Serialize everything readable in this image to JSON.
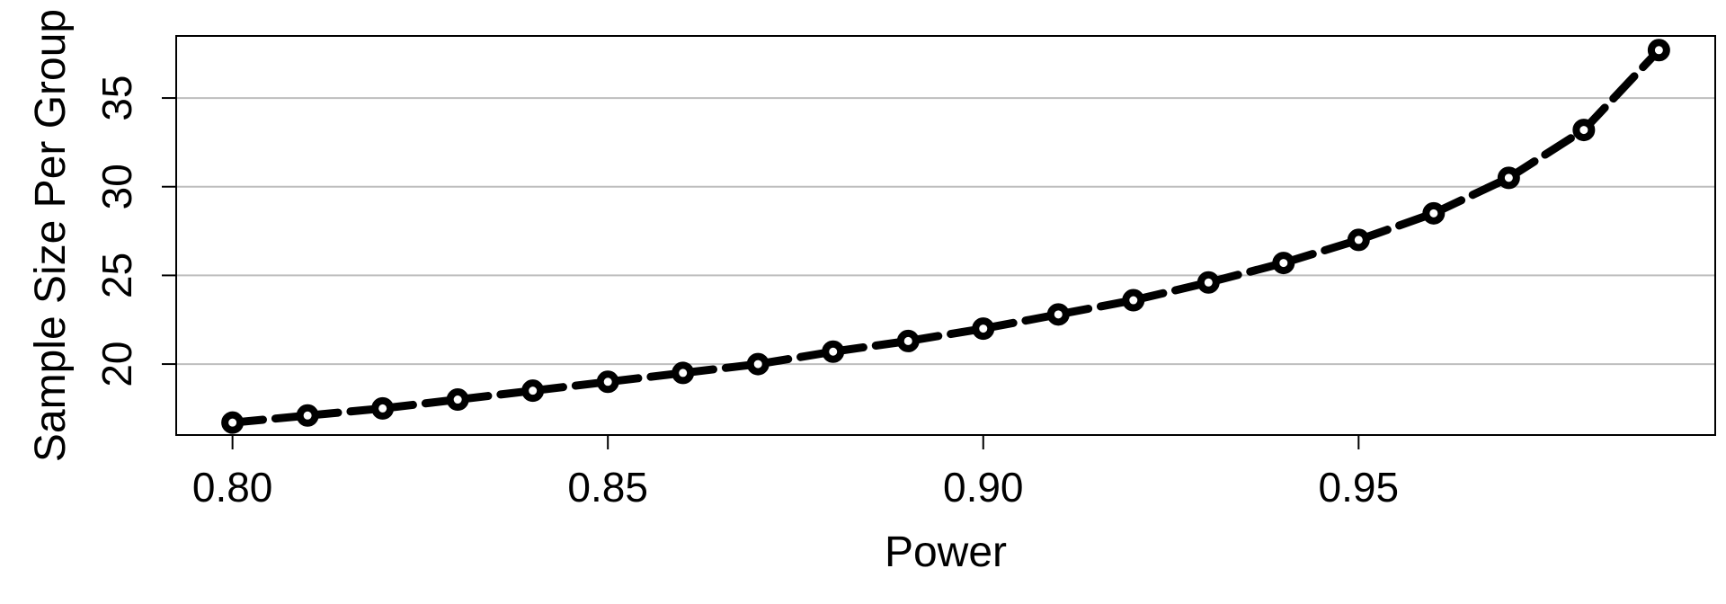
{
  "chart_data": {
    "type": "line",
    "title": "",
    "xlabel": "Power",
    "ylabel": "Sample Size Per Group",
    "xlim": [
      0.7925,
      0.9975
    ],
    "ylim": [
      16.0,
      38.5
    ],
    "x_ticks": [
      0.8,
      0.85,
      0.9,
      0.95
    ],
    "x_tick_labels": [
      "0.80",
      "0.85",
      "0.90",
      "0.95"
    ],
    "y_ticks": [
      20,
      25,
      30,
      35
    ],
    "y_tick_labels": [
      "20",
      "25",
      "30",
      "35"
    ],
    "grid": "horizontal",
    "line_style": "dashed",
    "marker": "circle",
    "series": [
      {
        "x": [
          0.8,
          0.81,
          0.82,
          0.83,
          0.84,
          0.85,
          0.86,
          0.87,
          0.88,
          0.89,
          0.9,
          0.91,
          0.92,
          0.93,
          0.94,
          0.95,
          0.96,
          0.97,
          0.98,
          0.99
        ],
        "values": [
          16.7,
          17.1,
          17.5,
          18.0,
          18.5,
          19.0,
          19.5,
          20.0,
          20.7,
          21.3,
          22.0,
          22.8,
          23.6,
          24.6,
          25.7,
          27.0,
          28.5,
          30.5,
          33.2,
          37.7
        ]
      }
    ],
    "colors": {
      "line": "#000000",
      "grid": "#bebebe",
      "frame": "#000000",
      "background": "#ffffff"
    }
  }
}
